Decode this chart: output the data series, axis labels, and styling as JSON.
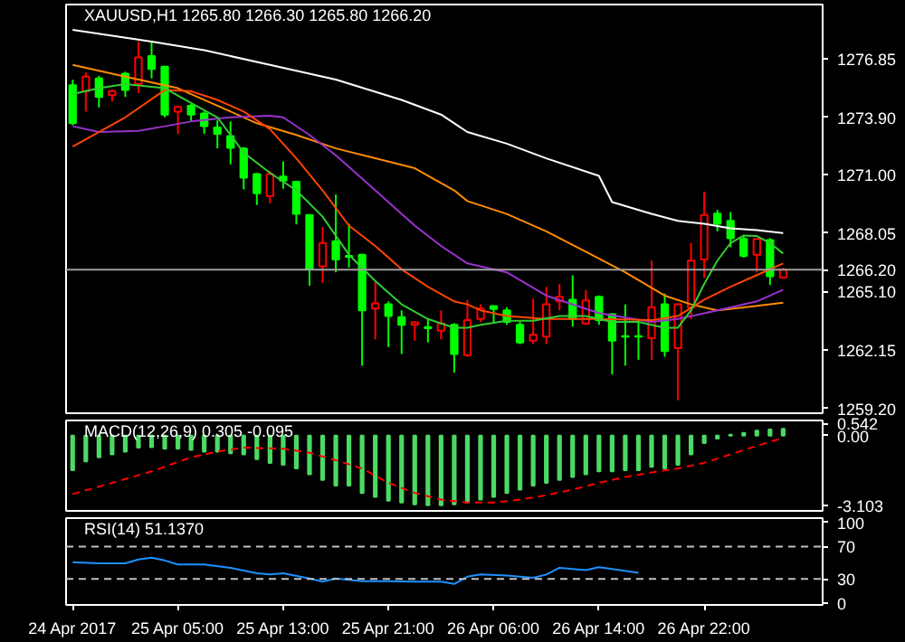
{
  "chart_data": [
    {
      "type": "candlestick",
      "title": "XAUUSD,H1 1265.80 1266.30 1265.80 1266.20",
      "categories": [
        null,
        null,
        null,
        null,
        null,
        null,
        null,
        null,
        null,
        null,
        null,
        null,
        null,
        null,
        null,
        null,
        null,
        null,
        null,
        null,
        null,
        null,
        null,
        null,
        null,
        null,
        null,
        null,
        null,
        null,
        null,
        null,
        null,
        null,
        null,
        null,
        null,
        null,
        null,
        null,
        null,
        null,
        null,
        null,
        null,
        null,
        null,
        null,
        null,
        null,
        null,
        null,
        null,
        null,
        null
      ],
      "ohlc": [
        [
          1275.52,
          1275.8,
          1273.5,
          1273.6
        ],
        [
          1275.22,
          1276.17,
          1274.19,
          1275.96
        ],
        [
          1275.87,
          1276.0,
          1274.4,
          1274.93
        ],
        [
          1275.02,
          1275.3,
          1274.7,
          1275.22
        ],
        [
          1276.11,
          1276.2,
          1274.93,
          1275.28
        ],
        [
          1275.58,
          1277.73,
          1275.13,
          1276.93
        ],
        [
          1277.0,
          1277.73,
          1275.87,
          1276.34
        ],
        [
          1276.46,
          1276.5,
          1273.9,
          1274.04
        ],
        [
          1274.19,
          1274.45,
          1273.07,
          1274.43
        ],
        [
          1274.48,
          1274.57,
          1273.69,
          1274.04
        ],
        [
          1274.1,
          1274.2,
          1273.07,
          1273.45
        ],
        [
          1273.39,
          1273.75,
          1272.33,
          1273.07
        ],
        [
          1272.95,
          1273.69,
          1271.53,
          1272.36
        ],
        [
          1272.33,
          1272.4,
          1270.26,
          1270.85
        ],
        [
          1271.03,
          1271.1,
          1269.47,
          1270.06
        ],
        [
          1269.91,
          1271.2,
          1269.56,
          1271.03
        ],
        [
          1270.91,
          1271.68,
          1270.29,
          1270.7
        ],
        [
          1270.65,
          1270.7,
          1268.49,
          1269.02
        ],
        [
          1268.97,
          1269.0,
          1265.39,
          1266.22
        ],
        [
          1266.37,
          1268.35,
          1265.54,
          1267.55
        ],
        [
          1267.64,
          1270.0,
          1266.07,
          1266.72
        ],
        [
          1266.9,
          1268.52,
          1266.31,
          1266.85
        ],
        [
          1266.96,
          1267.0,
          1261.35,
          1264.15
        ],
        [
          1264.24,
          1265.57,
          1262.68,
          1264.5
        ],
        [
          1264.45,
          1264.6,
          1262.29,
          1263.86
        ],
        [
          1263.8,
          1264.15,
          1261.94,
          1263.42
        ],
        [
          1263.42,
          1263.6,
          1262.62,
          1263.54
        ],
        [
          1263.3,
          1263.7,
          1262.53,
          1263.25
        ],
        [
          1263.12,
          1264.15,
          1262.68,
          1263.48
        ],
        [
          1263.42,
          1263.5,
          1261.0,
          1261.94
        ],
        [
          1261.88,
          1264.68,
          1261.8,
          1263.65
        ],
        [
          1263.71,
          1264.45,
          1263.56,
          1264.24
        ],
        [
          1264.36,
          1264.4,
          1263.48,
          1264.21
        ],
        [
          1264.15,
          1264.3,
          1263.42,
          1263.56
        ],
        [
          1263.42,
          1263.56,
          1262.44,
          1262.53
        ],
        [
          1262.62,
          1264.74,
          1262.44,
          1262.91
        ],
        [
          1262.82,
          1265.33,
          1262.44,
          1264.45
        ],
        [
          1264.6,
          1265.48,
          1264.15,
          1264.83
        ],
        [
          1264.68,
          1265.92,
          1263.33,
          1263.71
        ],
        [
          1263.48,
          1265.18,
          1263.42,
          1264.65
        ],
        [
          1264.83,
          1264.9,
          1263.42,
          1263.65
        ],
        [
          1263.95,
          1264.0,
          1260.91,
          1262.62
        ],
        [
          1262.85,
          1264.45,
          1261.35,
          1262.82
        ],
        [
          1262.85,
          1263.71,
          1261.65,
          1262.82
        ],
        [
          1262.74,
          1266.66,
          1261.65,
          1264.3
        ],
        [
          1264.45,
          1265.0,
          1261.8,
          1262.09
        ],
        [
          1262.24,
          1264.5,
          1259.6,
          1264.45
        ],
        [
          1264.3,
          1267.55,
          1263.71,
          1266.66
        ],
        [
          1266.72,
          1270.15,
          1265.78,
          1268.97
        ],
        [
          1269.03,
          1269.23,
          1268.14,
          1268.52
        ],
        [
          1268.67,
          1269.11,
          1267.34,
          1267.79
        ],
        [
          1267.76,
          1267.93,
          1266.81,
          1266.9
        ],
        [
          1266.96,
          1267.76,
          1266.07,
          1267.76
        ],
        [
          1267.7,
          1267.8,
          1265.43,
          1265.87
        ],
        [
          1265.8,
          1266.3,
          1265.8,
          1266.2
        ]
      ],
      "series": [
        {
          "type": "line",
          "color": "#ffffff",
          "values": [
            1278.32,
            null,
            null,
            null,
            null,
            null,
            1277.73,
            null,
            null,
            null,
            1277.29,
            null,
            null,
            null,
            null,
            1276.55,
            null,
            null,
            null,
            null,
            1275.81,
            null,
            null,
            null,
            null,
            1274.78,
            null,
            null,
            1274.04,
            null,
            1273.16,
            null,
            null,
            1272.57,
            null,
            null,
            1271.83,
            null,
            null,
            null,
            1270.94,
            1269.62,
            null,
            null,
            1269.02,
            null,
            1268.67,
            null,
            1268.52,
            null,
            1268.29,
            null,
            1268.2,
            null,
            1268.05
          ]
        },
        {
          "type": "line",
          "color": "#ff8c00",
          "values": [
            1276.55,
            null,
            null,
            null,
            1275.96,
            null,
            null,
            null,
            1275.37,
            null,
            null,
            1274.49,
            null,
            null,
            1273.6,
            null,
            null,
            1273.01,
            null,
            null,
            1272.33,
            null,
            null,
            1271.83,
            null,
            null,
            1271.33,
            null,
            null,
            1270.21,
            1269.67,
            null,
            null,
            1269.02,
            null,
            null,
            1268.14,
            null,
            null,
            1267.11,
            null,
            null,
            1266.07,
            null,
            null,
            1264.89,
            null,
            1264.45,
            null,
            1264.15,
            null,
            1264.3,
            null,
            1264.45,
            1264.54
          ]
        },
        {
          "type": "line",
          "color": "#9932cc",
          "values": [
            1273.45,
            null,
            1273.16,
            null,
            null,
            1273.22,
            null,
            1273.45,
            null,
            1273.69,
            null,
            null,
            1273.9,
            null,
            null,
            1273.98,
            1273.9,
            null,
            1273.01,
            null,
            1271.98,
            null,
            1270.8,
            null,
            1269.62,
            null,
            1268.43,
            null,
            1267.4,
            null,
            1266.52,
            null,
            null,
            1266.07,
            null,
            null,
            1264.89,
            null,
            null,
            null,
            1264.01,
            null,
            null,
            null,
            1263.56,
            null,
            1263.71,
            null,
            null,
            1264.15,
            null,
            null,
            1264.6,
            null,
            1265.19
          ]
        },
        {
          "type": "line",
          "color": "#ff4500",
          "values": [
            1272.42,
            null,
            null,
            null,
            1273.9,
            null,
            null,
            1275.28,
            null,
            1275.22,
            null,
            1274.78,
            null,
            1274.19,
            null,
            1273.3,
            null,
            1271.83,
            null,
            1270.21,
            null,
            1268.43,
            null,
            1267.4,
            null,
            1266.22,
            null,
            1265.34,
            null,
            1264.6,
            1264.45,
            1264.15,
            null,
            1263.86,
            null,
            null,
            1263.71,
            null,
            null,
            null,
            1263.71,
            null,
            null,
            null,
            1263.65,
            null,
            1263.86,
            null,
            1264.69,
            null,
            1265.34,
            null,
            1265.93,
            null,
            1266.52
          ]
        },
        {
          "type": "line",
          "color": "#32cd32",
          "values": [
            1275.08,
            null,
            1275.37,
            null,
            1275.58,
            null,
            null,
            1275.37,
            null,
            1274.63,
            null,
            1273.9,
            null,
            1272.12,
            null,
            1271.09,
            null,
            1270.21,
            null,
            1268.88,
            null,
            1266.96,
            null,
            1265.63,
            null,
            1264.45,
            null,
            1263.71,
            null,
            1263.27,
            1263.27,
            1263.42,
            null,
            1263.62,
            null,
            1263.62,
            null,
            1263.86,
            null,
            1263.86,
            null,
            1263.56,
            null,
            1263.56,
            null,
            1263.27,
            1263.27,
            1264.15,
            1265.48,
            1266.66,
            1267.55,
            1267.93,
            1267.9,
            1267.55,
            1267.02
          ]
        }
      ],
      "ylim": [
        1258.95,
        1279.6
      ],
      "yticks": [
        {
          "value": 1276.85,
          "label": "1276.85"
        },
        {
          "value": 1273.9,
          "label": "1273.90"
        },
        {
          "value": 1271.0,
          "label": "1271.00"
        },
        {
          "value": 1268.05,
          "label": "1268.05"
        },
        {
          "value": 1265.1,
          "label": "1265.10"
        },
        {
          "value": 1262.15,
          "label": "1262.15"
        },
        {
          "value": 1259.2,
          "label": "1259.20"
        }
      ],
      "ref_lines": [
        {
          "axis": "y",
          "value": 1266.2,
          "label": "1266.20",
          "color": "#a0a0a0"
        }
      ],
      "tick_labels": "y",
      "grid": false
    },
    {
      "type": "bar",
      "title": "MACD(12,26,9) 0.305 -0.095",
      "categories": [
        null,
        null,
        null,
        null,
        null,
        null,
        null,
        null,
        null,
        null,
        null,
        null,
        null,
        null,
        null,
        null,
        null,
        null,
        null,
        null,
        null,
        null,
        null,
        null,
        null,
        null,
        null,
        null,
        null,
        null,
        null,
        null,
        null,
        null,
        null,
        null,
        null,
        null,
        null,
        null,
        null,
        null,
        null,
        null,
        null,
        null,
        null,
        null,
        null,
        null,
        null,
        null,
        null,
        null,
        null
      ],
      "series": [
        {
          "type": "bar",
          "color": "#4cd964",
          "values": [
            -1.54,
            -1.14,
            -0.96,
            -0.83,
            -0.71,
            -0.53,
            -0.51,
            -0.58,
            -0.58,
            -0.63,
            -0.71,
            -0.71,
            -0.78,
            -0.83,
            -1.04,
            -1.21,
            -1.29,
            -1.46,
            -1.72,
            -1.97,
            -2.22,
            -2.22,
            -2.55,
            -2.73,
            -2.9,
            -2.98,
            -3.06,
            -3.1,
            -3.1,
            -3.06,
            -2.98,
            -2.85,
            -2.73,
            -2.55,
            -2.4,
            -2.22,
            -2.1,
            -1.97,
            -1.84,
            -1.72,
            -1.59,
            -1.59,
            -1.54,
            -1.54,
            -1.39,
            -1.46,
            -1.29,
            -0.83,
            -0.33,
            -0.13,
            0.05,
            0.13,
            0.23,
            0.28,
            0.305
          ]
        },
        {
          "type": "line",
          "color": "#ff0000",
          "line_style": "dashed",
          "values": [
            -2.6,
            null,
            null,
            -2.1,
            null,
            null,
            -1.59,
            null,
            null,
            -0.96,
            null,
            -0.71,
            null,
            -0.53,
            null,
            null,
            -0.58,
            null,
            -0.76,
            null,
            -1.09,
            null,
            -1.46,
            null,
            -2.1,
            null,
            -2.55,
            null,
            -2.85,
            null,
            -2.98,
            null,
            -2.98,
            null,
            -2.85,
            null,
            -2.65,
            null,
            -2.4,
            null,
            -2.1,
            null,
            -1.84,
            null,
            -1.64,
            null,
            -1.46,
            null,
            -1.21,
            null,
            -0.83,
            null,
            -0.45,
            null,
            -0.095
          ]
        }
      ],
      "ylim": [
        -3.35,
        0.68
      ],
      "yticks": [
        {
          "value": 0.542,
          "label": "0.542"
        },
        {
          "value": 0,
          "label": "0.00"
        },
        {
          "value": -3.103,
          "label": "-3.103"
        }
      ],
      "tick_labels": "y",
      "grid": false
    },
    {
      "type": "line",
      "title": "RSI(14) 51.1370",
      "categories": [
        "24 Apr 2017",
        null,
        null,
        null,
        null,
        null,
        null,
        null,
        "25 Apr 05:00",
        null,
        null,
        null,
        null,
        null,
        null,
        null,
        "25 Apr 13:00",
        null,
        null,
        null,
        null,
        null,
        null,
        null,
        "25 Apr 21:00",
        null,
        null,
        null,
        null,
        null,
        null,
        null,
        "26 Apr 06:00",
        null,
        null,
        null,
        null,
        null,
        null,
        null,
        "26 Apr 14:00",
        null,
        null,
        null,
        null,
        null,
        null,
        null,
        "26 Apr 22:00",
        null,
        null,
        null,
        null,
        null,
        null
      ],
      "series": [
        {
          "color": "#1e90ff",
          "values": [
            50.7,
            null,
            49.3,
            null,
            49.3,
            54.1,
            56.2,
            52.8,
            47.9,
            null,
            47.9,
            null,
            43.8,
            null,
            36.9,
            35.5,
            36.9,
            null,
            30.7,
            26.6,
            30.7,
            null,
            27.2,
            null,
            27.2,
            null,
            26.6,
            null,
            26.6,
            23.8,
            32.8,
            35.5,
            null,
            34.1,
            null,
            31.4,
            35.5,
            43.8,
            null,
            41.0,
            44.5,
            42.4,
            null,
            37.6,
            null,
            null,
            null,
            null,
            null,
            null,
            null,
            null,
            null,
            null,
            null
          ]
        }
      ],
      "ylim": [
        -2,
        105
      ],
      "yticks": [
        100,
        70,
        30,
        0
      ],
      "ref_lines": [
        {
          "axis": "y",
          "value": 70,
          "label": null,
          "color": "#c0c0c0",
          "line_style": "dashed"
        },
        {
          "axis": "y",
          "value": 30,
          "label": null,
          "color": "#c0c0c0",
          "line_style": "dashed"
        }
      ],
      "grid": false
    }
  ]
}
